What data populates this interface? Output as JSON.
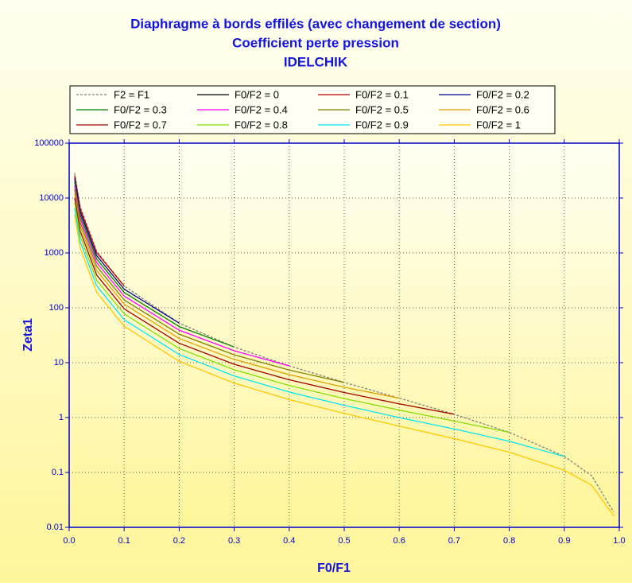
{
  "chart_data": {
    "type": "line",
    "title": [
      "Diaphragme à bords effilés (avec changement de section)",
      "Coefficient perte pression",
      "IDELCHIK"
    ],
    "xlabel": "F0/F1",
    "ylabel": "Zeta1",
    "yscale": "log",
    "grid": true,
    "legend": "top",
    "xlim": [
      0,
      1
    ],
    "xticks": [
      {
        "value": 0,
        "label": "0.0"
      },
      0.1,
      0.2,
      0.3,
      0.4,
      0.5,
      0.6,
      0.7,
      0.8,
      0.9,
      {
        "value": 1,
        "label": "1.0"
      }
    ],
    "ylim": [
      0.01,
      100000
    ],
    "yticks": [
      0.01,
      0.1,
      1,
      10,
      100,
      1000,
      10000,
      100000
    ],
    "x": [
      0.01,
      0.02,
      0.05,
      0.1,
      0.2,
      0.3,
      0.4,
      0.5,
      0.6,
      0.7,
      0.8,
      0.9,
      0.95,
      0.99
    ],
    "series": [
      {
        "name": "F2 = F1",
        "color": "#808080",
        "dashed": true,
        "values": [
          28707,
          7070,
          1080,
          249.5,
          52.6,
          19.3,
          8.76,
          4.37,
          2.26,
          1.149,
          0.538,
          0.196,
          0.0868,
          0.0188
        ]
      },
      {
        "name": "F0/F2 = 0",
        "color": "#000000",
        "values": [
          null,
          null,
          null,
          null,
          null,
          null,
          null,
          null,
          null,
          null,
          null,
          null,
          null,
          null
        ]
      },
      {
        "name": "F0/F2 = 0.1",
        "color": "#c00000",
        "values": [
          25738,
          6414,
          1016,
          249.5,
          null,
          null,
          null,
          null,
          null,
          null,
          null,
          null,
          null,
          null
        ]
      },
      {
        "name": "F0/F2 = 0.2",
        "color": "#000090",
        "values": [
          22629,
          5638,
          892,
          218.9,
          52.6,
          null,
          null,
          null,
          null,
          null,
          null,
          null,
          null,
          null
        ]
      },
      {
        "name": "F0/F2 = 0.3",
        "color": "#008000",
        "values": [
          19721,
          4912,
          777,
          190.3,
          45.6,
          19.3,
          null,
          null,
          null,
          null,
          null,
          null,
          null,
          null
        ]
      },
      {
        "name": "F0/F2 = 0.4",
        "color": "#ff00ff",
        "values": [
          17012,
          4236,
          669,
          163.7,
          39.1,
          16.5,
          8.76,
          null,
          null,
          null,
          null,
          null,
          null,
          null
        ]
      },
      {
        "name": "F0/F2 = 0.5",
        "color": "#808000",
        "values": [
          14503,
          3610,
          570,
          139.1,
          33.1,
          13.9,
          7.34,
          4.37,
          null,
          null,
          null,
          null,
          null,
          null
        ]
      },
      {
        "name": "F0/F2 = 0.6",
        "color": "#e0a000",
        "values": [
          12195,
          3034,
          478,
          116.5,
          27.6,
          11.5,
          6.05,
          3.57,
          2.26,
          null,
          null,
          null,
          null,
          null
        ]
      },
      {
        "name": "F0/F2 = 0.7",
        "color": "#a00000",
        "values": [
          10086,
          2509,
          395,
          95.9,
          22.6,
          9.37,
          4.88,
          2.86,
          1.78,
          1.149,
          null,
          null,
          null,
          null
        ]
      },
      {
        "name": "F0/F2 = 0.8",
        "color": "#80e000",
        "values": [
          8178,
          2033,
          319,
          77.4,
          18.1,
          7.44,
          3.84,
          2.22,
          1.37,
          0.863,
          0.538,
          null,
          null,
          null
        ]
      },
      {
        "name": "F0/F2 = 0.9",
        "color": "#00e8f0",
        "values": [
          6469,
          1607,
          252,
          60.8,
          14.1,
          5.74,
          2.92,
          1.67,
          1.0,
          0.618,
          0.37,
          0.196,
          null,
          null
        ]
      },
      {
        "name": "F0/F2 = 1",
        "color": "#ffc800",
        "values": [
          4960,
          1231,
          192,
          46.2,
          10.6,
          4.25,
          2.13,
          1.19,
          0.698,
          0.414,
          0.234,
          0.11,
          0.0586,
          0.0161
        ]
      }
    ]
  }
}
